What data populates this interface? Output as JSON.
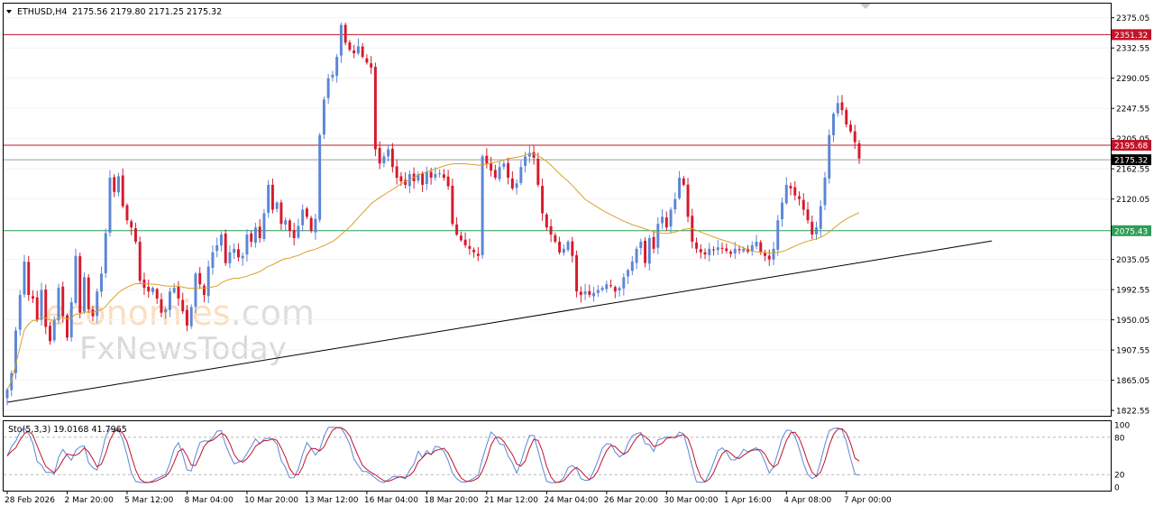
{
  "header": {
    "symbol_tf": "ETHUSD,H4",
    "ohlc": "2175.56 2179.80 2171.25 2175.32",
    "dropdown_icon": "triangle-down-icon"
  },
  "indicator_label": "Sto(5,3,3) 19.0168 41.7965",
  "watermark": {
    "brand_prefix": "eco",
    "brand_suffix": "nomies",
    "brand_tld": ".com",
    "secondary": "FxNewsToday"
  },
  "colors": {
    "bull": "#5b86d6",
    "bear": "#d61a2c",
    "resistance": "#c0142a",
    "support": "#2e9e58",
    "ma": "#d9a22e",
    "trend": "#000000",
    "stoch_main": "#5b86d6",
    "stoch_signal": "#c0142a"
  },
  "chart_data": {
    "type": "candlestick",
    "y_ticks": [
      "2375.05",
      "2332.55",
      "2290.05",
      "2247.55",
      "2205.05",
      "2162.55",
      "2120.05",
      "2075.45",
      "2035.05",
      "1992.55",
      "1950.05",
      "1907.55",
      "1865.05",
      "1822.55"
    ],
    "x_ticks": [
      "28 Feb 2026",
      "2 Mar 20:00",
      "5 Mar 12:00",
      "8 Mar 04:00",
      "10 Mar 20:00",
      "13 Mar 12:00",
      "16 Mar 04:00",
      "18 Mar 20:00",
      "21 Mar 12:00",
      "24 Mar 04:00",
      "26 Mar 20:00",
      "30 Mar 00:00",
      "1 Apr 16:00",
      "4 Apr 08:00",
      "7 Apr 00:00"
    ],
    "ylim": [
      1815,
      2395
    ],
    "levels": [
      {
        "price": 2351.32,
        "label": "2351.32",
        "role": "resistance"
      },
      {
        "price": 2195.68,
        "label": "2195.68",
        "role": "resistance"
      },
      {
        "price": 2175.32,
        "label": "2175.32",
        "role": "current"
      },
      {
        "price": 2075.43,
        "label": "2075.43",
        "role": "support"
      }
    ],
    "trendline": {
      "from_index": 0,
      "from_price": 1834,
      "to_index": 230,
      "to_price": 2061
    },
    "closes": [
      1852,
      1875,
      1935,
      1985,
      2032,
      1985,
      1980,
      1950,
      1992,
      1940,
      1920,
      1950,
      1995,
      1955,
      1925,
      1975,
      2040,
      1960,
      2010,
      1965,
      1955,
      1990,
      2015,
      2072,
      2150,
      2130,
      2152,
      2110,
      2090,
      2080,
      2060,
      2005,
      1995,
      1990,
      1995,
      1980,
      1960,
      1965,
      1990,
      1995,
      1980,
      1962,
      1942,
      1968,
      2015,
      2000,
      1985,
      2025,
      2045,
      2055,
      2070,
      2030,
      2045,
      2050,
      2038,
      2040,
      2070,
      2060,
      2080,
      2065,
      2100,
      2140,
      2105,
      2115,
      2085,
      2090,
      2075,
      2065,
      2082,
      2105,
      2095,
      2075,
      2092,
      2210,
      2260,
      2290,
      2295,
      2320,
      2365,
      2340,
      2330,
      2325,
      2335,
      2320,
      2312,
      2305,
      2190,
      2170,
      2180,
      2190,
      2165,
      2150,
      2145,
      2140,
      2155,
      2145,
      2155,
      2140,
      2158,
      2150,
      2155,
      2156,
      2150,
      2138,
      2085,
      2070,
      2062,
      2055,
      2050,
      2045,
      2040,
      2180,
      2170,
      2160,
      2150,
      2165,
      2170,
      2150,
      2135,
      2142,
      2165,
      2180,
      2185,
      2178,
      2140,
      2100,
      2080,
      2070,
      2060,
      2045,
      2050,
      2060,
      2040,
      1990,
      1985,
      1990,
      1985,
      1988,
      1992,
      1995,
      2000,
      1998,
      1990,
      1995,
      2010,
      2020,
      2032,
      2050,
      2060,
      2030,
      2065,
      2050,
      2085,
      2095,
      2080,
      2105,
      2120,
      2150,
      2140,
      2095,
      2060,
      2050,
      2045,
      2042,
      2050,
      2048,
      2052,
      2050,
      2047,
      2043,
      2050,
      2048,
      2050,
      2046,
      2055,
      2060,
      2045,
      2040,
      2035,
      2050,
      2090,
      2115,
      2140,
      2135,
      2125,
      2120,
      2105,
      2090,
      2070,
      2080,
      2110,
      2150,
      2210,
      2240,
      2255,
      2245,
      2225,
      2215,
      2200,
      2177
    ],
    "ma_window": 50,
    "stochastic": {
      "k": 19.0168,
      "d": 41.7965,
      "levels": [
        80,
        20
      ],
      "scale_labels": [
        "100",
        "80",
        "20",
        "0"
      ]
    }
  }
}
